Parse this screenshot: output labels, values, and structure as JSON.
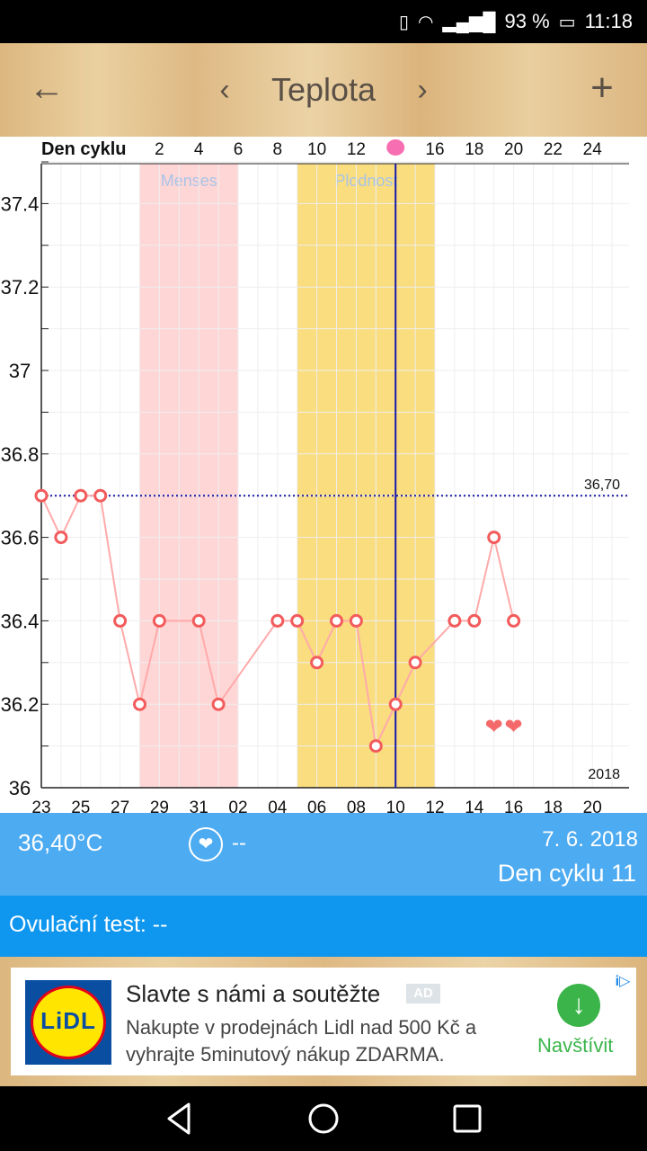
{
  "status_bar": {
    "battery_percent": "93 %",
    "time": "11:18",
    "icons": [
      "vibrate-icon",
      "wifi-icon",
      "signal-icon",
      "battery-icon"
    ]
  },
  "app_bar": {
    "title": "Teplota",
    "back_icon": "arrow-left-icon",
    "prev_icon": "chevron-left-icon",
    "next_icon": "chevron-right-icon",
    "add_icon": "plus-icon"
  },
  "chart_data": {
    "type": "line",
    "top_axis_label": "Den cyklu",
    "top_ticks": [
      "2",
      "4",
      "6",
      "8",
      "10",
      "12",
      "16",
      "18",
      "20",
      "22",
      "24"
    ],
    "x_dates": [
      "23",
      "25",
      "27",
      "29",
      "31",
      "02",
      "04",
      "06",
      "08",
      "10",
      "12",
      "14",
      "16",
      "18",
      "20"
    ],
    "y_ticks": [
      "36",
      "36.2",
      "36.4",
      "36.6",
      "36.8",
      "37",
      "37.2",
      "37.4"
    ],
    "ylim": [
      36.0,
      37.5
    ],
    "year_label": "2018",
    "coverline_value": 36.7,
    "coverline_label": "36,70",
    "bands": [
      {
        "label": "Menses",
        "from_index": 5,
        "to_index": 10,
        "color": "#ffd6d6"
      },
      {
        "label": "Plodnost",
        "from_index": 13,
        "to_index": 20,
        "color": "#f9dd7f"
      }
    ],
    "selected_index": 18,
    "ovulation_index": 18,
    "heart_indices": [
      23,
      24
    ],
    "points": [
      {
        "i": 0,
        "t": 36.7
      },
      {
        "i": 1,
        "t": 36.6
      },
      {
        "i": 2,
        "t": 36.7
      },
      {
        "i": 3,
        "t": 36.7
      },
      {
        "i": 4,
        "t": 36.4
      },
      {
        "i": 5,
        "t": 36.2
      },
      {
        "i": 6,
        "t": 36.4
      },
      {
        "i": 8,
        "t": 36.4
      },
      {
        "i": 9,
        "t": 36.2
      },
      {
        "i": 12,
        "t": 36.4
      },
      {
        "i": 13,
        "t": 36.4
      },
      {
        "i": 14,
        "t": 36.3
      },
      {
        "i": 15,
        "t": 36.4
      },
      {
        "i": 16,
        "t": 36.4
      },
      {
        "i": 17,
        "t": 36.1
      },
      {
        "i": 18,
        "t": 36.2
      },
      {
        "i": 19,
        "t": 36.3
      },
      {
        "i": 21,
        "t": 36.4
      },
      {
        "i": 22,
        "t": 36.4
      },
      {
        "i": 23,
        "t": 36.6
      },
      {
        "i": 24,
        "t": 36.4
      }
    ],
    "colors": {
      "line": "#ffaaaa",
      "marker": "#f25c5c",
      "coverline": "#1a1aa8",
      "selected": "#1a1aa8",
      "heart": "#f46a6a",
      "ovulation_dot": "#f76fb2"
    }
  },
  "info": {
    "temperature": "36,40°C",
    "heart_value": "--",
    "date": "7. 6. 2018",
    "cycle_day": "Den cyklu 11"
  },
  "ovulation_test": {
    "text": "Ovulační test: --"
  },
  "ad": {
    "logo_text": "LiDL",
    "title": "Slavte s námi a soutěžte",
    "badge": "AD",
    "description": "Nakupte v prodejnách Lidl nad 500 Kč a vyhrajte 5minutový nákup ZDARMA.",
    "cta": "Navštívit",
    "choices": "i▷"
  }
}
